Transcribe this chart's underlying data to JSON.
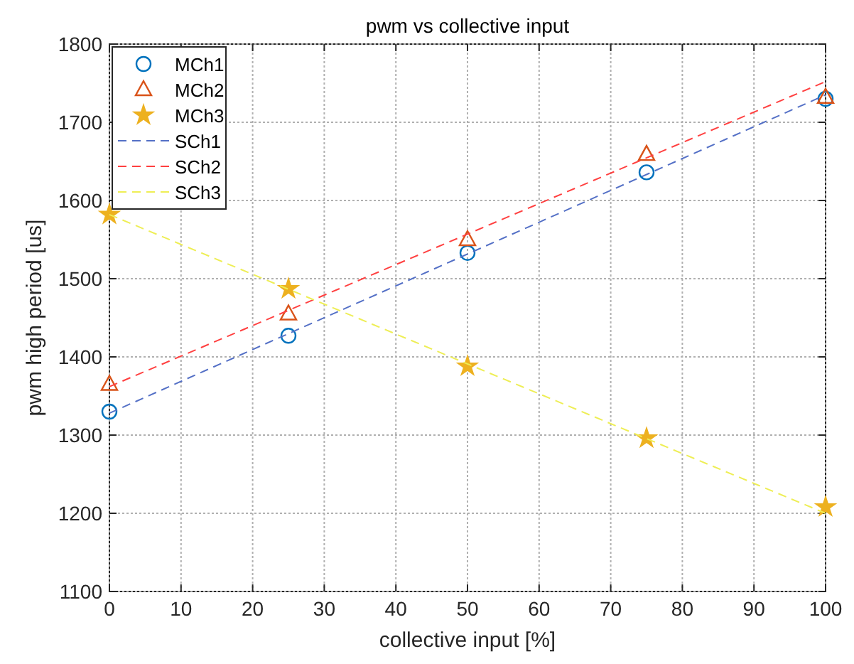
{
  "chart_data": {
    "type": "scatter",
    "title": "pwm vs collective input",
    "xlabel": "collective input [%]",
    "ylabel": "pwm high period [us]",
    "xlim": [
      0,
      100
    ],
    "xticks": [
      0,
      10,
      20,
      30,
      40,
      50,
      60,
      70,
      80,
      90,
      100
    ],
    "ylim": [
      1100,
      1800
    ],
    "yticks": [
      1100,
      1200,
      1300,
      1400,
      1500,
      1600,
      1700,
      1800
    ],
    "grid": true,
    "legend": "top left",
    "series": [
      {
        "name": "MCh1",
        "marker": "circle",
        "color": "#0072bd",
        "x": [
          0,
          25,
          50,
          75,
          100
        ],
        "values": [
          1330,
          1427,
          1533,
          1636,
          1730
        ]
      },
      {
        "name": "MCh2",
        "marker": "triangle",
        "color": "#d95319",
        "x": [
          0,
          25,
          50,
          75,
          100
        ],
        "values": [
          1365,
          1455,
          1550,
          1659,
          1732
        ]
      },
      {
        "name": "MCh3",
        "marker": "star",
        "color": "#edb120",
        "x": [
          0,
          25,
          50,
          75,
          100
        ],
        "values": [
          1582,
          1487,
          1388,
          1296,
          1208
        ]
      },
      {
        "name": "SCh1",
        "type": "line",
        "line_style": "dashed",
        "marker": "none",
        "color": "#5470c6",
        "x": [
          0,
          100
        ],
        "values": [
          1328,
          1735
        ]
      },
      {
        "name": "SCh2",
        "type": "line",
        "line_style": "dashed",
        "marker": "none",
        "color": "#ff4040",
        "x": [
          0,
          100
        ],
        "values": [
          1362,
          1752
        ]
      },
      {
        "name": "SCh3",
        "type": "line",
        "line_style": "dashed",
        "marker": "none",
        "color": "#eeee55",
        "x": [
          0,
          100
        ],
        "values": [
          1582,
          1200
        ]
      }
    ]
  }
}
